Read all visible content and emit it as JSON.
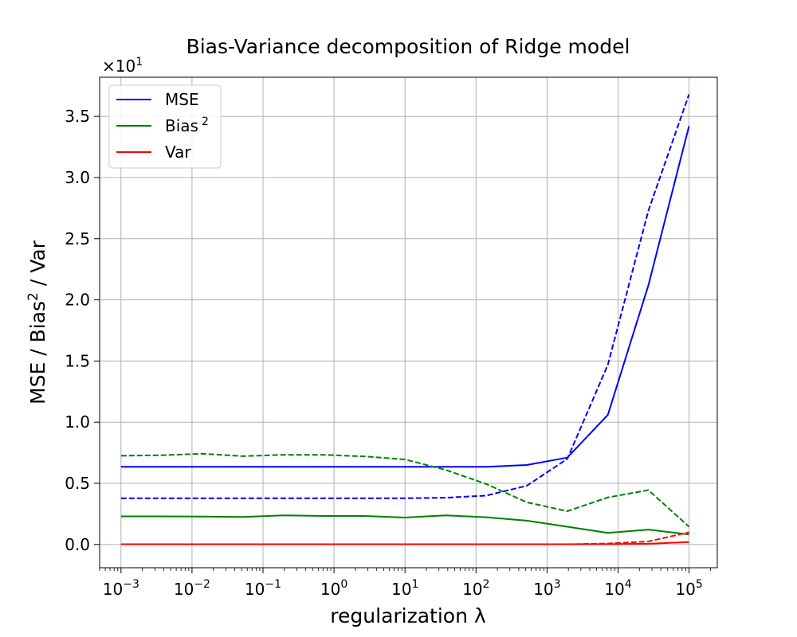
{
  "chart_data": {
    "type": "line",
    "title": "Bias-Variance decomposition of Ridge model",
    "xlabel": "regularization λ",
    "ylabel_parts": [
      "MSE / Bias",
      "2",
      " / Var"
    ],
    "x_scale": "log",
    "xlim": [
      0.0005,
      250000
    ],
    "ylim": [
      -1.9,
      38.2
    ],
    "y_offset_label": [
      "×10",
      "1"
    ],
    "grid": true,
    "legend_position": "upper left",
    "x_ticks": [
      {
        "value": 0.001,
        "base": "10",
        "exp": "−3"
      },
      {
        "value": 0.01,
        "base": "10",
        "exp": "−2"
      },
      {
        "value": 0.1,
        "base": "10",
        "exp": "−1"
      },
      {
        "value": 1,
        "base": "10",
        "exp": "0"
      },
      {
        "value": 10,
        "base": "10",
        "exp": "1"
      },
      {
        "value": 100,
        "base": "10",
        "exp": "2"
      },
      {
        "value": 1000,
        "base": "10",
        "exp": "3"
      },
      {
        "value": 10000,
        "base": "10",
        "exp": "4"
      },
      {
        "value": 100000,
        "base": "10",
        "exp": "5"
      }
    ],
    "y_ticks": [
      {
        "value": 0,
        "label": "0.0"
      },
      {
        "value": 5,
        "label": "0.5"
      },
      {
        "value": 10,
        "label": "1.0"
      },
      {
        "value": 15,
        "label": "1.5"
      },
      {
        "value": 20,
        "label": "2.0"
      },
      {
        "value": 25,
        "label": "2.5"
      },
      {
        "value": 30,
        "label": "3.0"
      },
      {
        "value": 35,
        "label": "3.5"
      }
    ],
    "x": [
      0.001,
      0.00373,
      0.0139,
      0.0518,
      0.193,
      0.72,
      2.68,
      10,
      37.3,
      139,
      518,
      1931,
      7197,
      26827,
      100000
    ],
    "series": [
      {
        "name": "MSE",
        "label_parts": [
          "MSE",
          ""
        ],
        "color": "#0000ff",
        "style": "solid",
        "values": [
          6.35,
          6.35,
          6.35,
          6.35,
          6.35,
          6.35,
          6.35,
          6.35,
          6.35,
          6.35,
          6.5,
          7.1,
          10.6,
          21.2,
          34.2
        ]
      },
      {
        "name": "Bias²",
        "label_parts": [
          "Bias",
          "2"
        ],
        "color": "#008000",
        "style": "solid",
        "values": [
          2.3,
          2.3,
          2.28,
          2.25,
          2.38,
          2.33,
          2.33,
          2.2,
          2.38,
          2.23,
          1.95,
          1.45,
          0.95,
          1.22,
          0.82
        ]
      },
      {
        "name": "Var",
        "label_parts": [
          "Var",
          ""
        ],
        "color": "#ff0000",
        "style": "solid",
        "values": [
          0.02,
          0.02,
          0.02,
          0.02,
          0.02,
          0.02,
          0.02,
          0.02,
          0.02,
          0.02,
          0.02,
          0.02,
          0.03,
          0.06,
          0.2
        ]
      },
      {
        "color": "#0000ff",
        "style": "dashed",
        "values": [
          3.78,
          3.78,
          3.78,
          3.78,
          3.78,
          3.78,
          3.78,
          3.78,
          3.82,
          4.0,
          4.8,
          7.0,
          14.7,
          27.3,
          36.8
        ]
      },
      {
        "color": "#008000",
        "style": "dashed",
        "values": [
          7.25,
          7.3,
          7.42,
          7.22,
          7.33,
          7.33,
          7.2,
          6.95,
          6.1,
          4.95,
          3.45,
          2.72,
          3.85,
          4.45,
          1.45
        ]
      },
      {
        "color": "#ff0000",
        "style": "dashed",
        "values": [
          0.02,
          0.02,
          0.02,
          0.02,
          0.02,
          0.02,
          0.02,
          0.02,
          0.02,
          0.02,
          0.02,
          0.02,
          0.08,
          0.25,
          1.0
        ]
      }
    ]
  }
}
